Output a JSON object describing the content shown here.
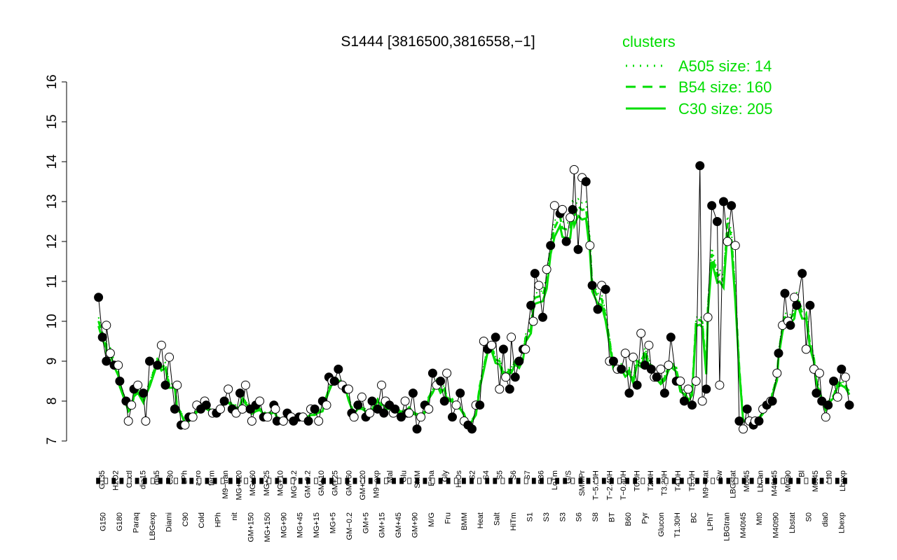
{
  "chart_data": {
    "type": "line",
    "title": "S1444 [3816500,3816558,−1]",
    "xlabel": "",
    "ylabel": "",
    "ylim": [
      7,
      16
    ],
    "yticks": [
      7,
      8,
      9,
      10,
      11,
      12,
      13,
      14,
      15,
      16
    ],
    "grid": false,
    "legend": {
      "title": "clusters",
      "placement": "top-right",
      "color": "#00dd00",
      "entries": [
        {
          "label": "A505 size: 14",
          "style": "dotted"
        },
        {
          "label": "B54 size: 160",
          "style": "dashed"
        },
        {
          "label": "C30 size: 205",
          "style": "solid"
        }
      ]
    },
    "colors": {
      "clusters": "#00dd00",
      "points": "#000000"
    },
    "x_tick_labels": [
      "G150",
      "G135",
      "G180",
      "H2O2",
      "Paraq",
      "Oxctl",
      "LBGexp",
      "dia15",
      "Diami",
      "dia5",
      "C90",
      "C30",
      "Cold",
      "LPh",
      "HPh",
      "aero",
      "nit",
      "ferm",
      "GM+150",
      "M9−tran",
      "MG+150",
      "MG+120",
      "MG+90",
      "MG+60",
      "MG+45",
      "MG+25",
      "MG+15",
      "MG+10",
      "MG+5",
      "MG−0.2",
      "GM−0.2",
      "Glucon",
      "GM+5",
      "GM+10",
      "GM+15",
      "GM+25",
      "GM+45",
      "GM+60",
      "GM+90",
      "GM+120",
      "M/G",
      "M9−exp",
      "Mal",
      "Fru",
      "Glu",
      "SMM",
      "BMM",
      "Heat",
      "Etha",
      "Salt",
      "Gly",
      "HiTm",
      "HiOs",
      "S1",
      "S2",
      "S3",
      "S4",
      "S5",
      "S6",
      "S7",
      "S8",
      "BT",
      "B36",
      "B60",
      "LoTm",
      "Pyr",
      "G/S",
      "Glucon",
      "SMMPr",
      "T−5.40H",
      "T−2.40H",
      "T−0.40H",
      "T0.0H",
      "T1.30H",
      "T2.0H",
      "T3.30H",
      "T4.0H",
      "T5.0H",
      "M9−stat",
      "BC",
      "Sw",
      "LPhT",
      "LBGstat",
      "LBGtran",
      "M0t45",
      "M40t45",
      "Lbtran",
      "Mt0",
      "M40t90",
      "M0t90",
      "Lbstat",
      "Bl",
      "S0",
      "M0t45",
      "dia0",
      "Mt0",
      "Lbexp"
    ],
    "x_tick_labels_bottom": [
      "G150",
      "G180",
      "Paraq",
      "LBGexp",
      "Diami",
      "C90",
      "Cold",
      "HPh",
      "nit",
      "GM+150",
      "MG+150",
      "MG+90",
      "MG+45",
      "MG+15",
      "MG+5",
      "GM−0.2",
      "GM+5",
      "GM+15",
      "GM+45",
      "GM+90",
      "M/G",
      "Fru",
      "BMM",
      "Heat",
      "Salt",
      "HiTm",
      "S1",
      "S3",
      "S3",
      "S6",
      "S8",
      "BT",
      "B60",
      "Pyr",
      "Glucon",
      "T1.30H",
      "BC",
      "LPhT",
      "LBGtran",
      "M40t45",
      "Mt0",
      "M40t90",
      "Lbstat",
      "S0",
      "dia0",
      "Lbexp"
    ],
    "x_tick_labels_top": [
      "G135",
      "H2O2",
      "Oxctl",
      "dia15",
      "dia5",
      "C30",
      "LPh",
      "aero",
      "ferm",
      "M9−tran",
      "MG+120",
      "MG+60",
      "MG+25",
      "MG+10",
      "MG−0.2",
      "GM−0.2",
      "GM+10",
      "GM+25",
      "GM+60",
      "GM+120",
      "M9−exp",
      "Mal",
      "Glu",
      "SMM",
      "Etha",
      "Gly",
      "HiOs",
      "S2",
      "S4",
      "S5",
      "S6",
      "S7",
      "B36",
      "LoTm",
      "G/S",
      "SMMPr",
      "T−5.40H",
      "T−2.40H",
      "T−0.40H",
      "T0.0H",
      "T2.0H",
      "T3.30H",
      "T4.0H",
      "T5.0H",
      "M9−stat",
      "Sw",
      "LBGstat",
      "M0t45",
      "Lbtran",
      "M40t45",
      "M0t90",
      "Bl",
      "M0t45",
      "Mt0",
      "Lbexp"
    ],
    "series": [
      {
        "type": "points",
        "x": [
          0.5,
          1.0,
          1.5,
          2.5,
          3.2,
          4.0,
          5.0,
          6.2,
          7.0,
          8.0,
          9.0,
          10.2,
          11.0,
          12.0,
          13.5,
          14.2,
          15.5,
          16.5,
          17.5,
          18.5,
          19.8,
          20.5,
          21.5,
          22.8,
          23.2,
          24.5,
          25.3,
          26.0,
          27.2,
          28.0,
          29.0,
          29.8,
          30.5,
          31.0,
          32.0,
          32.7,
          33.5,
          34.5,
          35.3,
          36.0,
          36.8,
          37.5,
          38.2,
          39.0,
          39.8,
          40.5,
          41.0,
          42.0,
          43.0,
          44.0,
          44.5,
          45.5,
          46.5,
          47.5,
          48.0,
          49.0,
          50.0,
          51.0,
          52.0,
          52.8,
          53.5,
          54.0,
          54.5,
          55.5,
          56.0,
          57.0,
          58.0,
          59.2,
          60.0,
          60.8,
          61.5,
          62.5,
          63.3,
          64.0,
          65.0,
          66.0,
          67.0,
          68.0,
          69.0,
          70.0,
          70.8,
          71.5,
          72.5,
          73.3,
          74.0,
          75.0,
          76.0,
          77.0,
          77.8,
          78.5,
          79.2,
          80.0,
          81.0,
          82.0,
          83.0,
          83.8,
          84.5,
          85.5,
          86.2,
          87.0,
          87.8,
          88.5,
          89.3,
          90.0,
          91.0,
          91.8,
          92.5,
          93.3,
          94.0,
          95.0,
          96.0
        ],
        "y": [
          10.6,
          9.6,
          9.0,
          8.9,
          8.5,
          8.0,
          8.3,
          8.2,
          9.0,
          8.9,
          8.4,
          7.8,
          7.4,
          7.6,
          7.8,
          7.9,
          7.7,
          8.0,
          7.8,
          8.2,
          7.8,
          7.9,
          7.6,
          7.9,
          7.5,
          7.7,
          7.5,
          7.6,
          7.5,
          7.8,
          8.0,
          8.6,
          8.5,
          8.8,
          8.3,
          7.7,
          7.9,
          7.6,
          8.0,
          7.8,
          7.7,
          7.9,
          7.8,
          7.6,
          7.7,
          8.2,
          7.3,
          7.9,
          8.7,
          8.5,
          8.0,
          7.6,
          8.2,
          7.4,
          7.3,
          7.9,
          9.3,
          9.6,
          9.3,
          8.3,
          8.6,
          9.0,
          9.3,
          10.4,
          11.2,
          10.1,
          11.9,
          12.7,
          12.0,
          12.8,
          11.8,
          13.5,
          10.9,
          10.3,
          10.8,
          9.0,
          8.8,
          8.2,
          8.4,
          8.9,
          8.8,
          8.6,
          8.2,
          9.6,
          8.5,
          8.0,
          7.9,
          13.9,
          8.3,
          12.9,
          12.5,
          13.0,
          12.9,
          7.5,
          7.8,
          7.4,
          7.5,
          7.9,
          8.0,
          9.2,
          10.7,
          9.9,
          10.4,
          11.2,
          10.4,
          8.2,
          8.0,
          7.9,
          8.5,
          8.8,
          7.9
        ]
      },
      {
        "type": "points",
        "x": [
          1.5,
          2.0,
          3.0,
          4.3,
          4.7,
          5.5,
          6.5,
          8.5,
          9.5,
          10.5,
          11.5,
          12.5,
          13.0,
          14.0,
          15.0,
          16.0,
          17.0,
          18.0,
          18.8,
          19.2,
          20.0,
          21.0,
          22.0,
          23.0,
          24.0,
          25.0,
          26.5,
          27.5,
          28.5,
          29.5,
          30.2,
          31.5,
          32.3,
          33.0,
          34.0,
          35.0,
          36.5,
          37.0,
          38.0,
          39.5,
          40.0,
          41.5,
          42.5,
          43.5,
          44.8,
          46.0,
          47.0,
          48.5,
          49.5,
          50.5,
          51.5,
          52.3,
          53.0,
          54.8,
          55.8,
          56.5,
          57.5,
          58.5,
          59.5,
          60.5,
          61.0,
          62.0,
          63.0,
          64.5,
          65.5,
          66.5,
          67.5,
          68.5,
          69.5,
          70.5,
          71.2,
          72.0,
          73.0,
          74.5,
          75.5,
          76.5,
          77.3,
          78.0,
          79.5,
          80.5,
          81.5,
          82.5,
          83.3,
          84.0,
          85.0,
          86.0,
          86.8,
          87.5,
          88.2,
          89.0,
          90.5,
          91.5,
          92.2,
          93.0,
          94.5,
          95.5
        ],
        "y": [
          9.9,
          9.2,
          8.9,
          7.5,
          7.9,
          8.4,
          7.5,
          9.4,
          9.1,
          8.4,
          7.4,
          7.6,
          7.9,
          8.0,
          7.7,
          7.8,
          8.3,
          7.7,
          7.8,
          8.4,
          7.5,
          8.0,
          7.6,
          7.8,
          7.5,
          7.6,
          7.6,
          7.8,
          7.5,
          7.9,
          8.5,
          8.4,
          8.3,
          7.6,
          8.1,
          7.7,
          8.4,
          8.0,
          7.7,
          8.0,
          7.7,
          7.6,
          7.8,
          8.4,
          8.7,
          7.9,
          7.5,
          7.9,
          9.5,
          9.4,
          8.3,
          8.6,
          9.6,
          9.3,
          10.0,
          10.9,
          11.3,
          12.9,
          12.8,
          12.6,
          13.8,
          13.6,
          11.9,
          10.9,
          9.0,
          8.8,
          9.2,
          9.1,
          9.7,
          9.4,
          8.6,
          8.8,
          8.9,
          8.5,
          8.3,
          8.5,
          8.0,
          10.1,
          8.4,
          12.0,
          11.9,
          7.3,
          7.5,
          7.5,
          7.8,
          8.0,
          8.7,
          9.9,
          10.0,
          10.6,
          9.3,
          8.8,
          8.7,
          7.6,
          8.1,
          8.6
        ]
      }
    ]
  }
}
